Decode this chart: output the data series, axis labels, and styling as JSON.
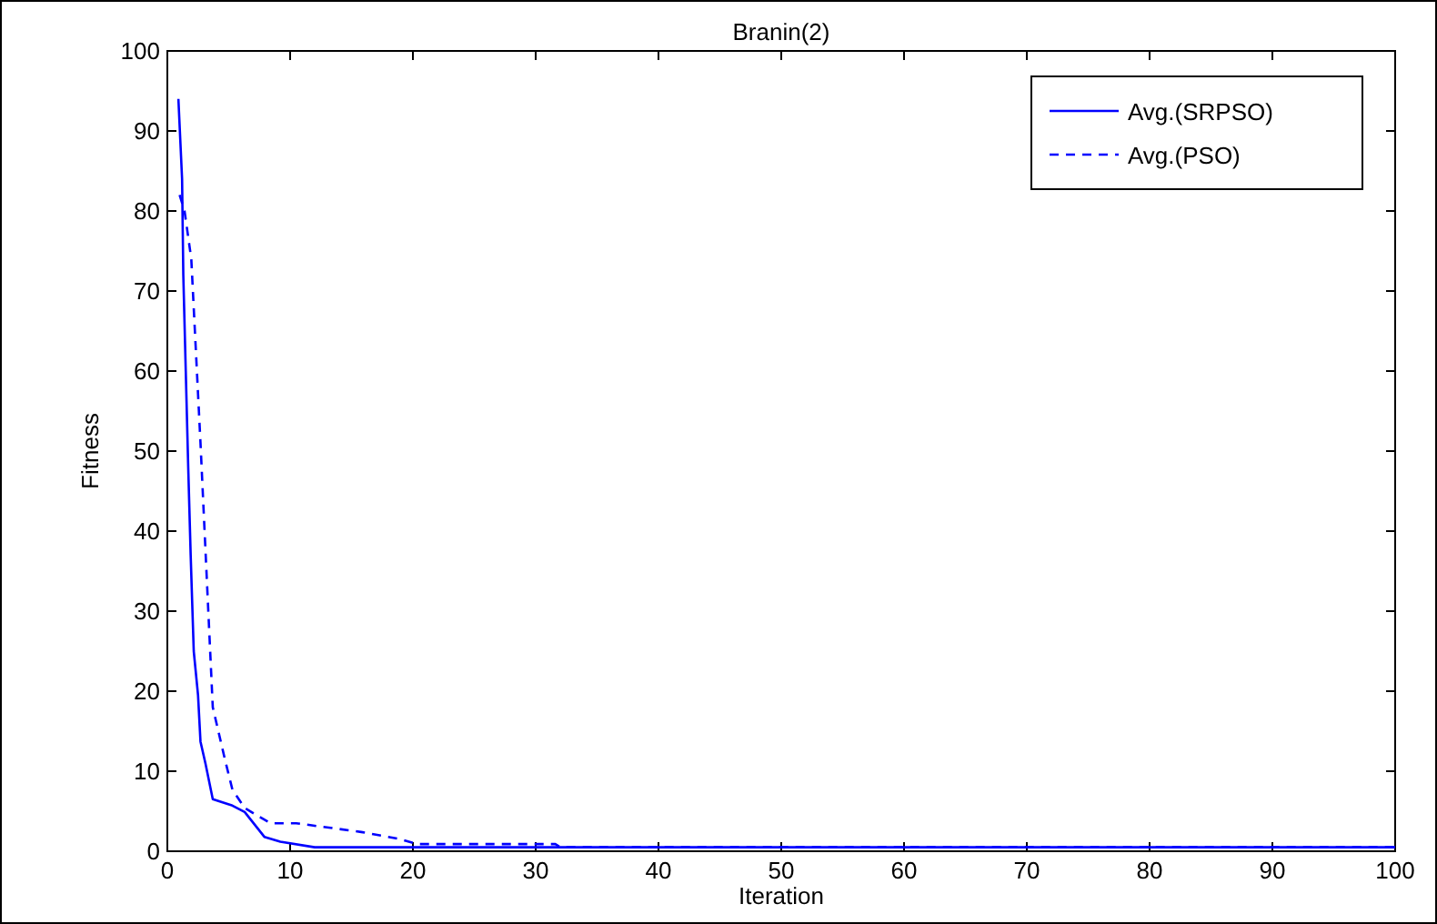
{
  "chart_data": {
    "type": "line",
    "title": "Branin(2)",
    "xlabel": "Iteration",
    "ylabel": "Fitness",
    "xlim": [
      0,
      100
    ],
    "ylim": [
      0,
      100
    ],
    "xticks": [
      0,
      10,
      20,
      30,
      40,
      50,
      60,
      70,
      80,
      90,
      100
    ],
    "yticks": [
      0,
      10,
      20,
      30,
      40,
      50,
      60,
      70,
      80,
      90,
      100
    ],
    "grid": false,
    "legend": "top right",
    "series": [
      {
        "name": "Avg.(SRPSO)",
        "color": "#0000ff",
        "line_style": "solid",
        "x": [
          0.9,
          1.2,
          1.3,
          1.5,
          1.7,
          1.9,
          2.15,
          2.5,
          2.7,
          3.1,
          3.7,
          5.3,
          6.3,
          7.9,
          9.2,
          12,
          100
        ],
        "values": [
          94,
          84,
          72,
          60,
          48,
          37,
          25,
          19.5,
          13.7,
          11,
          6.5,
          5.7,
          4.9,
          1.8,
          1.2,
          0.5,
          0.5
        ]
      },
      {
        "name": "Avg.(PSO)",
        "color": "#0000ff",
        "line_style": "dashed",
        "x": [
          1,
          1.4,
          1.95,
          2.7,
          3.7,
          4.7,
          5.3,
          6.3,
          8.4,
          10.5,
          15.8,
          19,
          20.3,
          31.6,
          32,
          100
        ],
        "values": [
          82,
          80,
          74,
          51,
          18,
          11.4,
          7.7,
          5.4,
          3.5,
          3.5,
          2.4,
          1.5,
          0.9,
          0.9,
          0.5,
          0.5
        ]
      }
    ]
  }
}
